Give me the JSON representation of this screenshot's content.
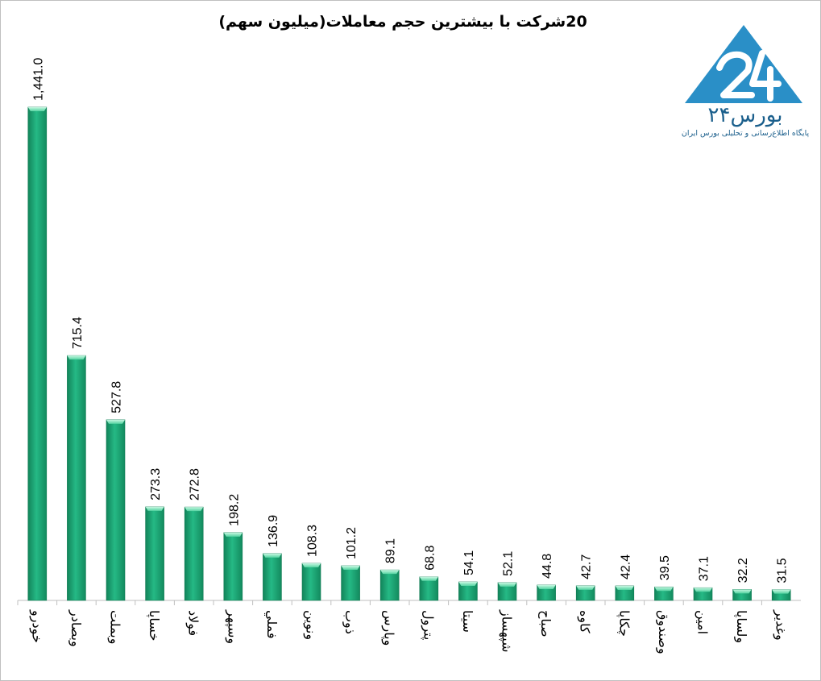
{
  "chart_data": {
    "type": "bar",
    "title": "20شرکت با بیشترین حجم معاملات(میلیون سهم)",
    "categories": [
      "خودرو",
      "وبصادر",
      "وبملت",
      "خساپا",
      "فولاد",
      "وسپهر",
      "فملي",
      "ونوین",
      "ذوب",
      "وپارس",
      "پترول",
      "سیتا",
      "شپهساز",
      "صباح",
      "کاوه",
      "چکاپا",
      "وصندوق",
      "امین",
      "ولساپا",
      "وغدیر"
    ],
    "value_labels": [
      "1,441.0",
      "715.4",
      "527.8",
      "273.3",
      "272.8",
      "198.2",
      "136.9",
      "108.3",
      "101.2",
      "89.1",
      "68.8",
      "54.1",
      "52.1",
      "44.8",
      "42.7",
      "42.4",
      "39.5",
      "37.1",
      "32.2",
      "31.5"
    ],
    "values": [
      1441.0,
      715.4,
      527.8,
      273.3,
      272.8,
      198.2,
      136.9,
      108.3,
      101.2,
      89.1,
      68.8,
      54.1,
      52.1,
      44.8,
      42.7,
      42.4,
      39.5,
      37.1,
      32.2,
      31.5
    ],
    "ylim": [
      0,
      1450
    ],
    "grid": false,
    "legend": "none",
    "colors": {
      "bar": "#20a978",
      "bar_top": "#9ff0cc",
      "bar_edge": "#0f7a52",
      "axis": "#bfbfbf"
    }
  },
  "logo": {
    "name": "بورس۲۴",
    "tagline": "پایگاه اطلاع‌رسانی و تحلیلی بورس ایران",
    "color": "#2a8fc7"
  }
}
